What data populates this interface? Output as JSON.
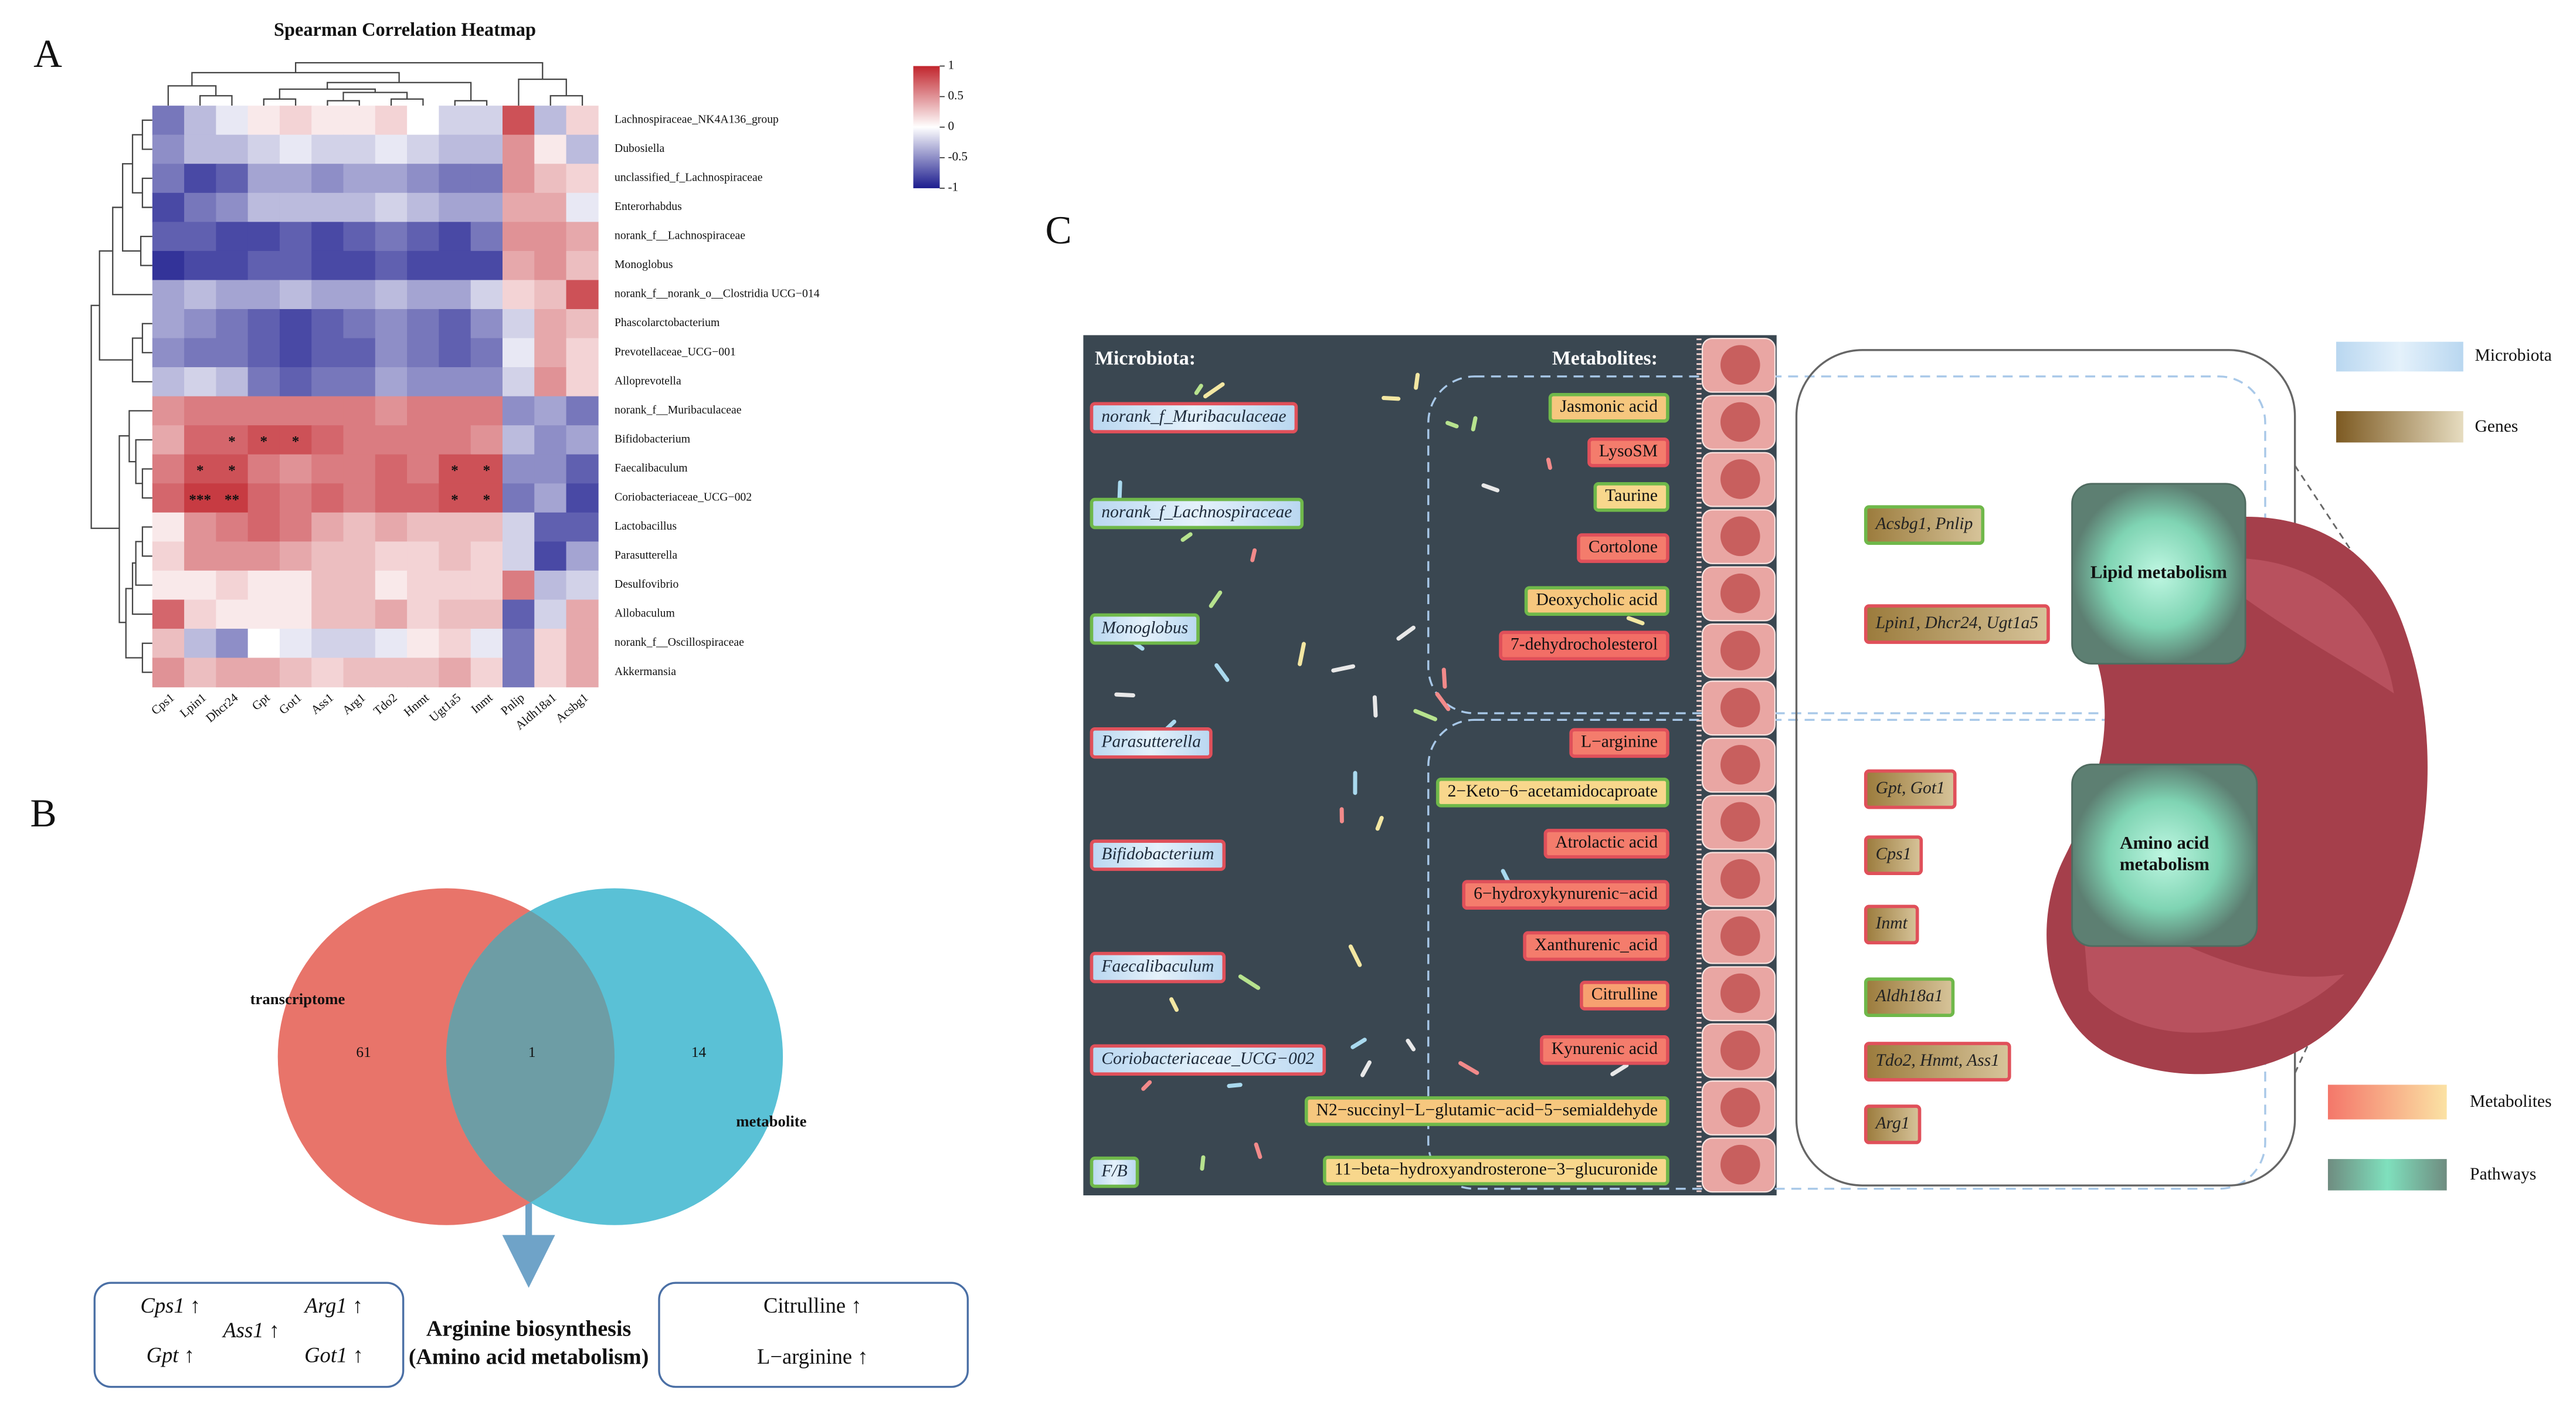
{
  "chart_data": [
    {
      "type": "heatmap",
      "title": "Spearman Correlation Heatmap",
      "xcategories": [
        "Cps1",
        "Lpin1",
        "Dhcr24",
        "Gpt",
        "Got1",
        "Ass1",
        "Arg1",
        "Tdo2",
        "Hnmt",
        "Ugt1a5",
        "Inmt",
        "Pnlip",
        "Aldh18a1",
        "Acsbg1"
      ],
      "ycategories": [
        "Lachnospiraceae_NK4A136_group",
        "Dubosiella",
        "unclassified_f_Lachnospiraceae",
        "Enterorhabdus",
        "norank_f__Lachnospiraceae",
        "Monoglobus",
        "norank_f__norank_o__Clostridia UCG−014",
        "Phascolarctobacterium",
        "Prevotellaceae_UCG−001",
        "Alloprevotella",
        "norank_f__Muribaculaceae",
        "Bifidobacterium",
        "Faecalibaculum",
        "Coriobacteriaceae_UCG−002",
        "Lactobacillus",
        "Parasutterella",
        "Desulfovibrio",
        "Allobaculum",
        "norank_f__Oscillospiraceae",
        "Akkermansia"
      ],
      "values": [
        [
          -0.6,
          -0.3,
          -0.1,
          0.1,
          0.2,
          0.1,
          0.1,
          0.2,
          0,
          -0.2,
          -0.2,
          0.8,
          -0.3,
          0.2
        ],
        [
          -0.5,
          -0.3,
          -0.3,
          -0.2,
          -0.1,
          -0.2,
          -0.2,
          -0.1,
          -0.2,
          -0.3,
          -0.3,
          0.5,
          0.1,
          -0.3
        ],
        [
          -0.6,
          -0.8,
          -0.7,
          -0.4,
          -0.4,
          -0.5,
          -0.4,
          -0.4,
          -0.5,
          -0.6,
          -0.6,
          0.5,
          0.3,
          0.2
        ],
        [
          -0.8,
          -0.6,
          -0.5,
          -0.3,
          -0.3,
          -0.3,
          -0.3,
          -0.2,
          -0.3,
          -0.4,
          -0.4,
          0.4,
          0.4,
          -0.1
        ],
        [
          -0.7,
          -0.7,
          -0.8,
          -0.8,
          -0.7,
          -0.8,
          -0.7,
          -0.6,
          -0.7,
          -0.8,
          -0.6,
          0.5,
          0.5,
          0.4
        ],
        [
          -0.9,
          -0.8,
          -0.8,
          -0.7,
          -0.7,
          -0.8,
          -0.8,
          -0.7,
          -0.8,
          -0.8,
          -0.8,
          0.4,
          0.5,
          0.3
        ],
        [
          -0.4,
          -0.3,
          -0.4,
          -0.4,
          -0.3,
          -0.4,
          -0.4,
          -0.3,
          -0.4,
          -0.4,
          -0.2,
          0.2,
          0.3,
          0.8
        ],
        [
          -0.4,
          -0.5,
          -0.6,
          -0.7,
          -0.8,
          -0.7,
          -0.6,
          -0.5,
          -0.6,
          -0.7,
          -0.5,
          -0.2,
          0.4,
          0.3
        ],
        [
          -0.5,
          -0.6,
          -0.6,
          -0.7,
          -0.8,
          -0.7,
          -0.7,
          -0.5,
          -0.6,
          -0.7,
          -0.6,
          -0.1,
          0.4,
          0.2
        ],
        [
          -0.3,
          -0.2,
          -0.3,
          -0.6,
          -0.7,
          -0.6,
          -0.6,
          -0.4,
          -0.5,
          -0.5,
          -0.5,
          -0.2,
          0.5,
          0.2
        ],
        [
          0.5,
          0.6,
          0.6,
          0.6,
          0.6,
          0.6,
          0.6,
          0.5,
          0.6,
          0.6,
          0.6,
          -0.5,
          -0.4,
          -0.6
        ],
        [
          0.4,
          0.7,
          0.7,
          0.8,
          0.8,
          0.7,
          0.6,
          0.6,
          0.6,
          0.6,
          0.5,
          -0.3,
          -0.5,
          -0.4
        ],
        [
          0.6,
          0.8,
          0.8,
          0.6,
          0.5,
          0.6,
          0.6,
          0.7,
          0.6,
          0.8,
          0.8,
          -0.5,
          -0.5,
          -0.7
        ],
        [
          0.7,
          0.9,
          0.9,
          0.7,
          0.6,
          0.7,
          0.6,
          0.7,
          0.7,
          0.8,
          0.8,
          -0.6,
          -0.4,
          -0.8
        ],
        [
          0.1,
          0.5,
          0.6,
          0.7,
          0.6,
          0.4,
          0.3,
          0.4,
          0.3,
          0.3,
          0.3,
          -0.2,
          -0.7,
          -0.7
        ],
        [
          0.2,
          0.5,
          0.5,
          0.5,
          0.4,
          0.3,
          0.3,
          0.2,
          0.2,
          0.3,
          0.2,
          -0.2,
          -0.8,
          -0.4
        ],
        [
          0.1,
          0.1,
          0.2,
          0.1,
          0.1,
          0.3,
          0.3,
          0.1,
          0.2,
          0.2,
          0.2,
          0.6,
          -0.3,
          -0.2
        ],
        [
          0.7,
          0.2,
          0.1,
          0.1,
          0.1,
          0.3,
          0.3,
          0.4,
          0.2,
          0.3,
          0.3,
          -0.7,
          -0.2,
          0.4
        ],
        [
          0.3,
          -0.3,
          -0.5,
          0,
          -0.1,
          -0.2,
          -0.2,
          -0.1,
          0.1,
          0.2,
          -0.1,
          -0.6,
          0.2,
          0.4
        ],
        [
          0.5,
          0.3,
          0.4,
          0.4,
          0.3,
          0.2,
          0.3,
          0.3,
          0.3,
          0.4,
          0.2,
          -0.6,
          0.2,
          0.4
        ]
      ],
      "annotations": [
        {
          "row": 11,
          "col": 2,
          "text": "*"
        },
        {
          "row": 11,
          "col": 3,
          "text": "*"
        },
        {
          "row": 11,
          "col": 4,
          "text": "*"
        },
        {
          "row": 12,
          "col": 1,
          "text": "*"
        },
        {
          "row": 12,
          "col": 2,
          "text": "*"
        },
        {
          "row": 12,
          "col": 9,
          "text": "*"
        },
        {
          "row": 12,
          "col": 10,
          "text": "*"
        },
        {
          "row": 13,
          "col": 1,
          "text": "***"
        },
        {
          "row": 13,
          "col": 2,
          "text": "**"
        },
        {
          "row": 13,
          "col": 9,
          "text": "*"
        },
        {
          "row": 13,
          "col": 10,
          "text": "*"
        }
      ],
      "zlim": [
        -1,
        1
      ],
      "zticks": [
        1,
        0.5,
        0,
        -0.5,
        -1
      ],
      "colors": [
        "#1c1c8e",
        "#ffffff",
        "#c1252d"
      ]
    },
    {
      "type": "venn",
      "sets": [
        {
          "name": "transcriptome",
          "color": "#e8746a",
          "value": 61
        },
        {
          "name": "metabolite",
          "color": "#5ac1d6",
          "value": 14
        }
      ],
      "intersection": 1,
      "intersection_color": "#6d9da5"
    }
  ],
  "panel_labels": [
    "A",
    "B",
    "C"
  ],
  "panel_b": {
    "left_items": [
      "Cps1 ↑",
      "Arg1 ↑",
      "Ass1 ↑",
      "Gpt ↑",
      "Got1 ↑"
    ],
    "caption": [
      "Arginine biosynthesis",
      "(Amino acid metabolism)"
    ],
    "right_items": [
      "Citrulline ↑",
      "L−arginine ↑"
    ]
  },
  "panel_c": {
    "microbiota_heading": "Microbiota:",
    "metabolites_heading": "Metabolites:",
    "microbiota": [
      {
        "label": "norank_f_Muribaculaceae",
        "border": "#e0505a"
      },
      {
        "label": "norank_f_Lachnospiraceae",
        "border": "#6fb84a"
      },
      {
        "label": "Monoglobus",
        "border": "#6fb84a"
      },
      {
        "label": "Parasutterella",
        "border": "#e0505a"
      },
      {
        "label": "Bifidobacterium",
        "border": "#e0505a"
      },
      {
        "label": "Faecalibaculum",
        "border": "#e0505a"
      },
      {
        "label": "Coriobacteriaceae_UCG−002",
        "border": "#e0505a"
      },
      {
        "label": "F/B",
        "border": "#6fb84a"
      }
    ],
    "metabolites": [
      {
        "label": "Jasmonic acid",
        "fill": "#f6c77e",
        "border": "#6fb84a"
      },
      {
        "label": "LysoSM",
        "fill": "#f47c6c",
        "border": "#e0505a"
      },
      {
        "label": "Taurine",
        "fill": "#f8d78c",
        "border": "#6fb84a"
      },
      {
        "label": "Cortolone",
        "fill": "#f47c6c",
        "border": "#e0505a"
      },
      {
        "label": "Deoxycholic acid",
        "fill": "#f6c77e",
        "border": "#6fb84a"
      },
      {
        "label": "7-dehydrocholesterol",
        "fill": "#f26e66",
        "border": "#e0505a"
      },
      {
        "label": "L−arginine",
        "fill": "#f47c6c",
        "border": "#e0505a"
      },
      {
        "label": "2−Keto−6−acetamidocaproate",
        "fill": "#f8d78c",
        "border": "#6fb84a"
      },
      {
        "label": "Atrolactic acid",
        "fill": "#f47c6c",
        "border": "#e0505a"
      },
      {
        "label": "6−hydroxykynurenic−acid",
        "fill": "#f47c6c",
        "border": "#e0505a"
      },
      {
        "label": "Xanthurenic_acid",
        "fill": "#f47c6c",
        "border": "#e0505a"
      },
      {
        "label": "Citrulline",
        "fill": "#f7a070",
        "border": "#e0505a"
      },
      {
        "label": "Kynurenic acid",
        "fill": "#f47c6c",
        "border": "#e0505a"
      },
      {
        "label": "N2−succinyl−L−glutamic−acid−5−semialdehyde",
        "fill": "#f6c77e",
        "border": "#6fb84a"
      },
      {
        "label": "11−beta−hydroxyandrosterone−3−glucuronide",
        "fill": "#f8d78c",
        "border": "#6fb84a"
      }
    ],
    "genes": [
      {
        "label": "Acsbg1, Pnlip",
        "border": "#6fb84a"
      },
      {
        "label": "Lpin1, Dhcr24, Ugt1a5",
        "border": "#e0505a"
      },
      {
        "label": "Gpt, Got1",
        "border": "#e0505a"
      },
      {
        "label": "Cps1",
        "border": "#e0505a"
      },
      {
        "label": "Inmt",
        "border": "#e0505a"
      },
      {
        "label": "Aldh18a1",
        "border": "#6fb84a"
      },
      {
        "label": "Tdo2, Hnmt, Ass1",
        "border": "#e0505a"
      },
      {
        "label": "Arg1",
        "border": "#e0505a"
      }
    ],
    "pathways": [
      [
        "Lipid metabolism"
      ],
      [
        "Amino acid",
        "metabolism"
      ]
    ],
    "legend": [
      "Microbiota",
      "Genes",
      "Metabolites",
      "Pathways"
    ]
  }
}
